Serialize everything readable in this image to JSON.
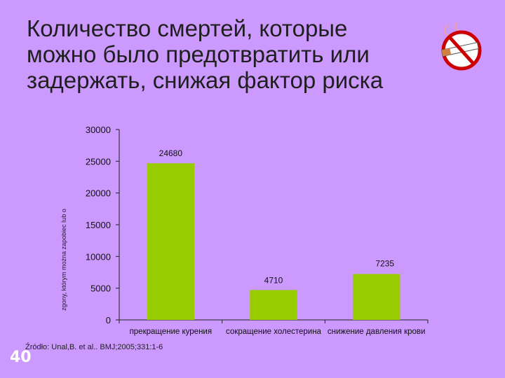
{
  "slide": {
    "title_lines": [
      "Количество смертей, которые",
      "можно было предотвратить или",
      "задержать, снижая фактор риска"
    ],
    "number": "40",
    "source": "Źródło: Unal,B. et al.. BMJ;2005;331:1-6"
  },
  "icon": {
    "name": "no-smoking-icon"
  },
  "colors": {
    "background": "#cc99ff",
    "bar": "#99cc00",
    "accent": "#cc0000"
  },
  "chart_data": {
    "type": "bar",
    "title": "",
    "ylabel": "zgony, którym można zapobiec lub o",
    "xlabel": "",
    "categories": [
      "прекращение курения",
      "сокращение холестерина",
      "снижение давления крови"
    ],
    "values": [
      24680,
      4710,
      7235
    ],
    "data_labels": [
      "24680",
      "4710",
      "7235"
    ],
    "ylim": [
      0,
      30000
    ],
    "yticks": [
      0,
      5000,
      10000,
      15000,
      20000,
      25000,
      30000
    ],
    "grid": false,
    "legend": "none"
  }
}
